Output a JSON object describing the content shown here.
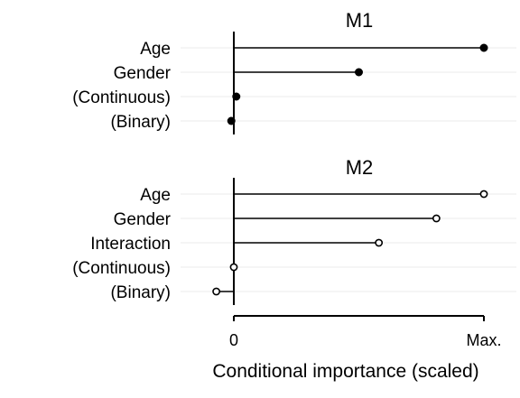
{
  "chart_data": {
    "type": "lollipop",
    "xlabel": "Conditional importance (scaled)",
    "x_ticks": [
      "0",
      "Max."
    ],
    "xlim": [
      -0.1,
      1.0
    ],
    "grid": true,
    "panels": [
      {
        "title": "M1",
        "marker": "filled",
        "categories": [
          "Age",
          "Gender",
          "(Continuous)",
          "(Binary)"
        ],
        "values": [
          1.0,
          0.5,
          0.01,
          -0.01
        ]
      },
      {
        "title": "M2",
        "marker": "hollow",
        "categories": [
          "Age",
          "Gender",
          "Interaction",
          "(Continuous)",
          "(Binary)"
        ],
        "values": [
          1.0,
          0.81,
          0.58,
          0.0,
          -0.07
        ]
      }
    ]
  }
}
